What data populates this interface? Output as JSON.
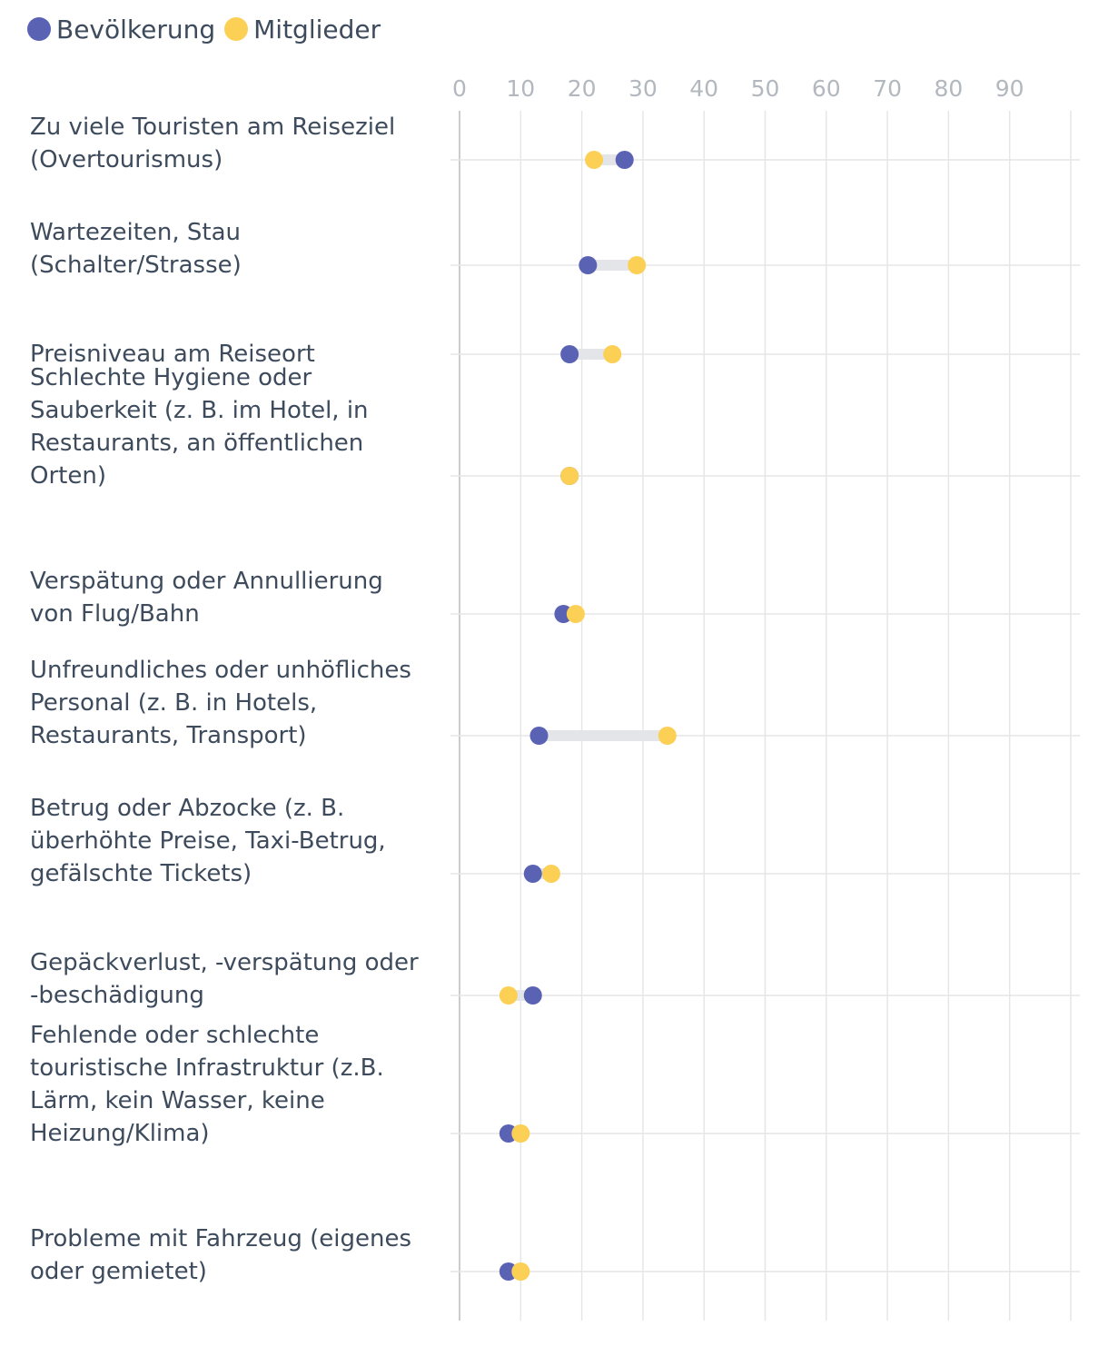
{
  "chart_data": {
    "type": "dumbbell",
    "series": [
      {
        "name": "Bevölkerung",
        "color": "#5a62b4",
        "values": [
          27,
          21,
          18,
          18,
          17,
          13,
          12,
          12,
          8,
          8
        ]
      },
      {
        "name": "Mitglieder",
        "color": "#fccf55",
        "values": [
          22,
          29,
          25,
          18,
          19,
          34,
          15,
          8,
          10,
          10
        ]
      }
    ],
    "categories": [
      [
        "Zu viele Touristen am Reiseziel",
        "(Overtourismus)"
      ],
      [
        "Wartezeiten, Stau",
        "(Schalter/Strasse)"
      ],
      [
        "Preisniveau am Reiseort"
      ],
      [
        "Schlechte Hygiene oder",
        "Sauberkeit (z. B. im Hotel, in",
        "Restaurants, an öffentlichen",
        "Orten)"
      ],
      [
        "Verspätung oder Annullierung",
        "von Flug/Bahn"
      ],
      [
        "Unfreundliches oder unhöfliches",
        "Personal (z. B. in Hotels,",
        "Restaurants, Transport)"
      ],
      [
        "Betrug oder Abzocke (z. B.",
        "überhöhte Preise, Taxi-Betrug,",
        "gefälschte Tickets)"
      ],
      [
        "Gepäckverlust, -verspätung oder",
        "-beschädigung"
      ],
      [
        "Fehlende oder schlechte",
        "touristische Infrastruktur (z.B.",
        "Lärm, kein Wasser, keine",
        "Heizung/Klima)"
      ],
      [
        "Probleme mit Fahrzeug (eigenes",
        "oder gemietet)"
      ]
    ],
    "x_ticks": [
      0,
      10,
      20,
      30,
      40,
      50,
      60,
      70,
      80,
      90
    ],
    "xlim": [
      0,
      100
    ],
    "grid": true,
    "legend": "top-left",
    "connector_color": "#e3e5e8",
    "grid_color": "#e6e6e6",
    "axis_color": "#cccccc",
    "title": "",
    "xlabel": "",
    "ylabel": ""
  }
}
